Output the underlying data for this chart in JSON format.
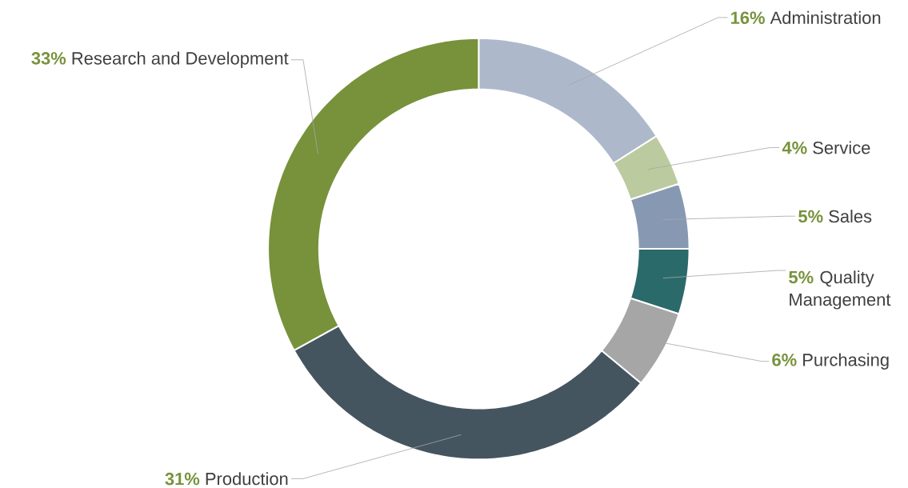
{
  "chart_data": {
    "type": "donut",
    "categories": [
      "Administration",
      "Service",
      "Sales",
      "Quality Management",
      "Purchasing",
      "Production",
      "Research and Development"
    ],
    "values": [
      16,
      4,
      5,
      5,
      6,
      31,
      33
    ],
    "value_labels": [
      "16%",
      "4%",
      "5%",
      "5%",
      "6%",
      "31%",
      "33%"
    ],
    "colors": [
      "#adb9cb",
      "#bccb9f",
      "#8799b2",
      "#2b6a6a",
      "#a6a6a6",
      "#455560",
      "#77923b"
    ]
  }
}
